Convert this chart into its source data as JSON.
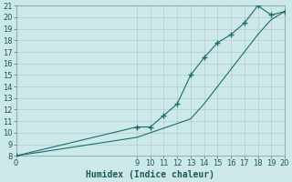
{
  "xlabel": "Humidex (Indice chaleur)",
  "bg_color": "#cce8e8",
  "grid_color": "#b0cccc",
  "line_color": "#1a6e6e",
  "xlim": [
    0,
    20
  ],
  "ylim": [
    8,
    21
  ],
  "yticks": [
    8,
    9,
    10,
    11,
    12,
    13,
    14,
    15,
    16,
    17,
    18,
    19,
    20,
    21
  ],
  "xticks": [
    0,
    9,
    10,
    11,
    12,
    13,
    14,
    15,
    16,
    17,
    18,
    19,
    20
  ],
  "curve1_x": [
    0,
    9,
    10,
    11,
    12,
    13,
    14,
    15,
    16,
    17,
    18,
    19,
    20
  ],
  "curve1_y": [
    8.0,
    10.5,
    10.5,
    11.5,
    12.5,
    15.0,
    16.5,
    17.8,
    18.5,
    19.5,
    21.0,
    20.2,
    20.5
  ],
  "curve2_x": [
    0,
    9,
    10,
    11,
    12,
    13,
    14,
    15,
    16,
    17,
    18,
    19,
    20
  ],
  "curve2_y": [
    8.0,
    9.6,
    10.0,
    10.4,
    10.8,
    11.2,
    12.5,
    14.0,
    15.5,
    17.0,
    18.5,
    19.8,
    20.5
  ],
  "tick_fontsize": 6,
  "xlabel_fontsize": 7
}
